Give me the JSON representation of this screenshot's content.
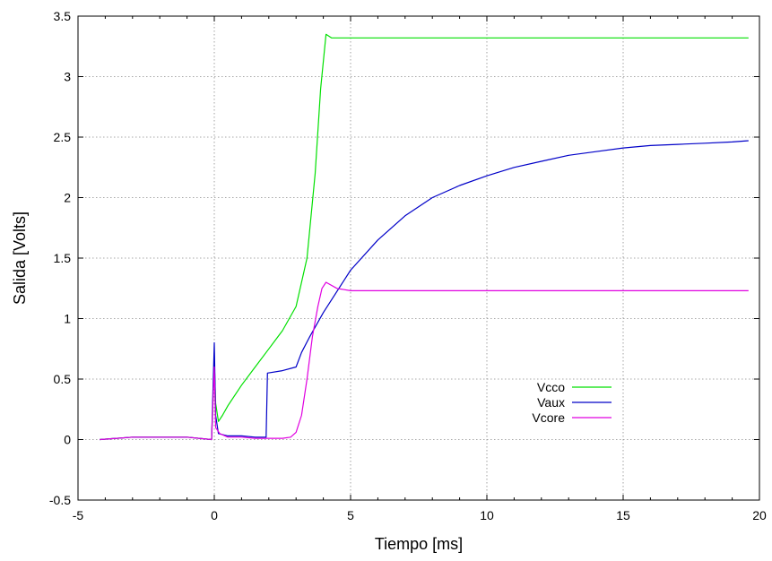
{
  "chart_data": {
    "type": "line",
    "xlabel": "Tiempo [ms]",
    "ylabel": "Salida [Volts]",
    "xlim": [
      -5,
      20
    ],
    "ylim": [
      -0.5,
      3.5
    ],
    "xticks": [
      -5,
      0,
      5,
      10,
      15,
      20
    ],
    "xtick_labels": [
      "-5",
      "0",
      "5",
      "10",
      "15",
      "20"
    ],
    "yticks": [
      -0.5,
      0,
      0.5,
      1,
      1.5,
      2,
      2.5,
      3,
      3.5
    ],
    "ytick_labels": [
      "-0.5",
      "0",
      "0.5",
      "1",
      "1.5",
      "2",
      "2.5",
      "3",
      "3.5"
    ],
    "grid": true,
    "legend_position": "lower-right",
    "series": [
      {
        "name": "Vcco",
        "color": "#00e000",
        "x": [
          -4.2,
          -3,
          -2,
          -1,
          -0.1,
          0.0,
          0.05,
          0.15,
          0.3,
          0.5,
          1,
          1.5,
          2,
          2.5,
          3,
          3.4,
          3.7,
          3.9,
          4.1,
          4.3,
          5,
          7,
          10,
          13,
          16,
          18,
          19.6
        ],
        "y": [
          0.0,
          0.02,
          0.02,
          0.02,
          0.0,
          0.65,
          0.3,
          0.15,
          0.2,
          0.28,
          0.45,
          0.6,
          0.75,
          0.9,
          1.1,
          1.5,
          2.2,
          2.9,
          3.35,
          3.32,
          3.32,
          3.32,
          3.32,
          3.32,
          3.32,
          3.32,
          3.32
        ]
      },
      {
        "name": "Vaux",
        "color": "#0000c8",
        "x": [
          -4.2,
          -3,
          -2,
          -1,
          -0.1,
          0.0,
          0.05,
          0.15,
          0.5,
          1,
          1.5,
          1.9,
          1.95,
          2.5,
          3.0,
          3.2,
          3.5,
          4,
          5,
          6,
          7,
          8,
          9,
          10,
          11,
          12,
          13,
          14,
          15,
          16,
          17,
          18,
          19,
          19.6
        ],
        "y": [
          0.0,
          0.02,
          0.02,
          0.02,
          0.0,
          0.8,
          0.2,
          0.05,
          0.03,
          0.03,
          0.02,
          0.02,
          0.55,
          0.57,
          0.6,
          0.72,
          0.85,
          1.05,
          1.4,
          1.65,
          1.85,
          2.0,
          2.1,
          2.18,
          2.25,
          2.3,
          2.35,
          2.38,
          2.41,
          2.43,
          2.44,
          2.45,
          2.46,
          2.47
        ]
      },
      {
        "name": "Vcore",
        "color": "#e000e0",
        "x": [
          -4.2,
          -3,
          -2,
          -1,
          -0.1,
          0.0,
          0.05,
          0.2,
          0.5,
          1,
          1.5,
          2,
          2.5,
          2.8,
          3.0,
          3.2,
          3.4,
          3.6,
          3.8,
          3.95,
          4.1,
          4.5,
          5,
          6,
          8,
          10,
          12,
          14,
          16,
          18,
          19.6
        ],
        "y": [
          0.0,
          0.02,
          0.02,
          0.02,
          0.0,
          0.6,
          0.1,
          0.05,
          0.02,
          0.02,
          0.01,
          0.01,
          0.01,
          0.02,
          0.06,
          0.2,
          0.5,
          0.85,
          1.1,
          1.25,
          1.3,
          1.25,
          1.23,
          1.23,
          1.23,
          1.23,
          1.23,
          1.23,
          1.23,
          1.23,
          1.23
        ]
      }
    ]
  }
}
